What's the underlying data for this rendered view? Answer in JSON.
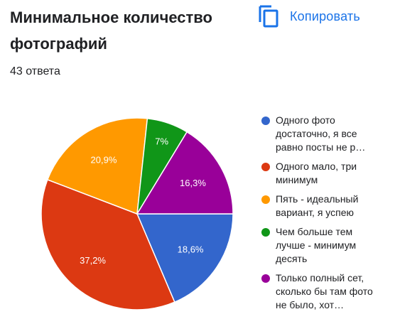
{
  "header": {
    "title": "Минимальное количество фотографий",
    "responses": "43 ответа",
    "copy_label": "Копировать",
    "copy_icon": "copy-icon"
  },
  "chart_data": {
    "type": "pie",
    "title": "Минимальное количество фотографий",
    "slices": [
      {
        "label": "Одного фото достаточно, я все равно посты не р…",
        "value": 18.6,
        "value_label": "18,6%",
        "color": "#3366cc"
      },
      {
        "label": "Одного мало, три минимум",
        "value": 37.2,
        "value_label": "37,2%",
        "color": "#dc3912"
      },
      {
        "label": "Пять - идеальный вариант, я успею",
        "value": 20.9,
        "value_label": "20,9%",
        "color": "#ff9900"
      },
      {
        "label": "Чем больше тем лучше - минимум десять",
        "value": 7.0,
        "value_label": "7%",
        "color": "#109618"
      },
      {
        "label": "Только полный сет, сколько бы там фото не было, хот…",
        "value": 16.3,
        "value_label": "16,3%",
        "color": "#990099"
      }
    ],
    "start": "3 o'clock",
    "direction": "clockwise",
    "legend_position": "right"
  }
}
